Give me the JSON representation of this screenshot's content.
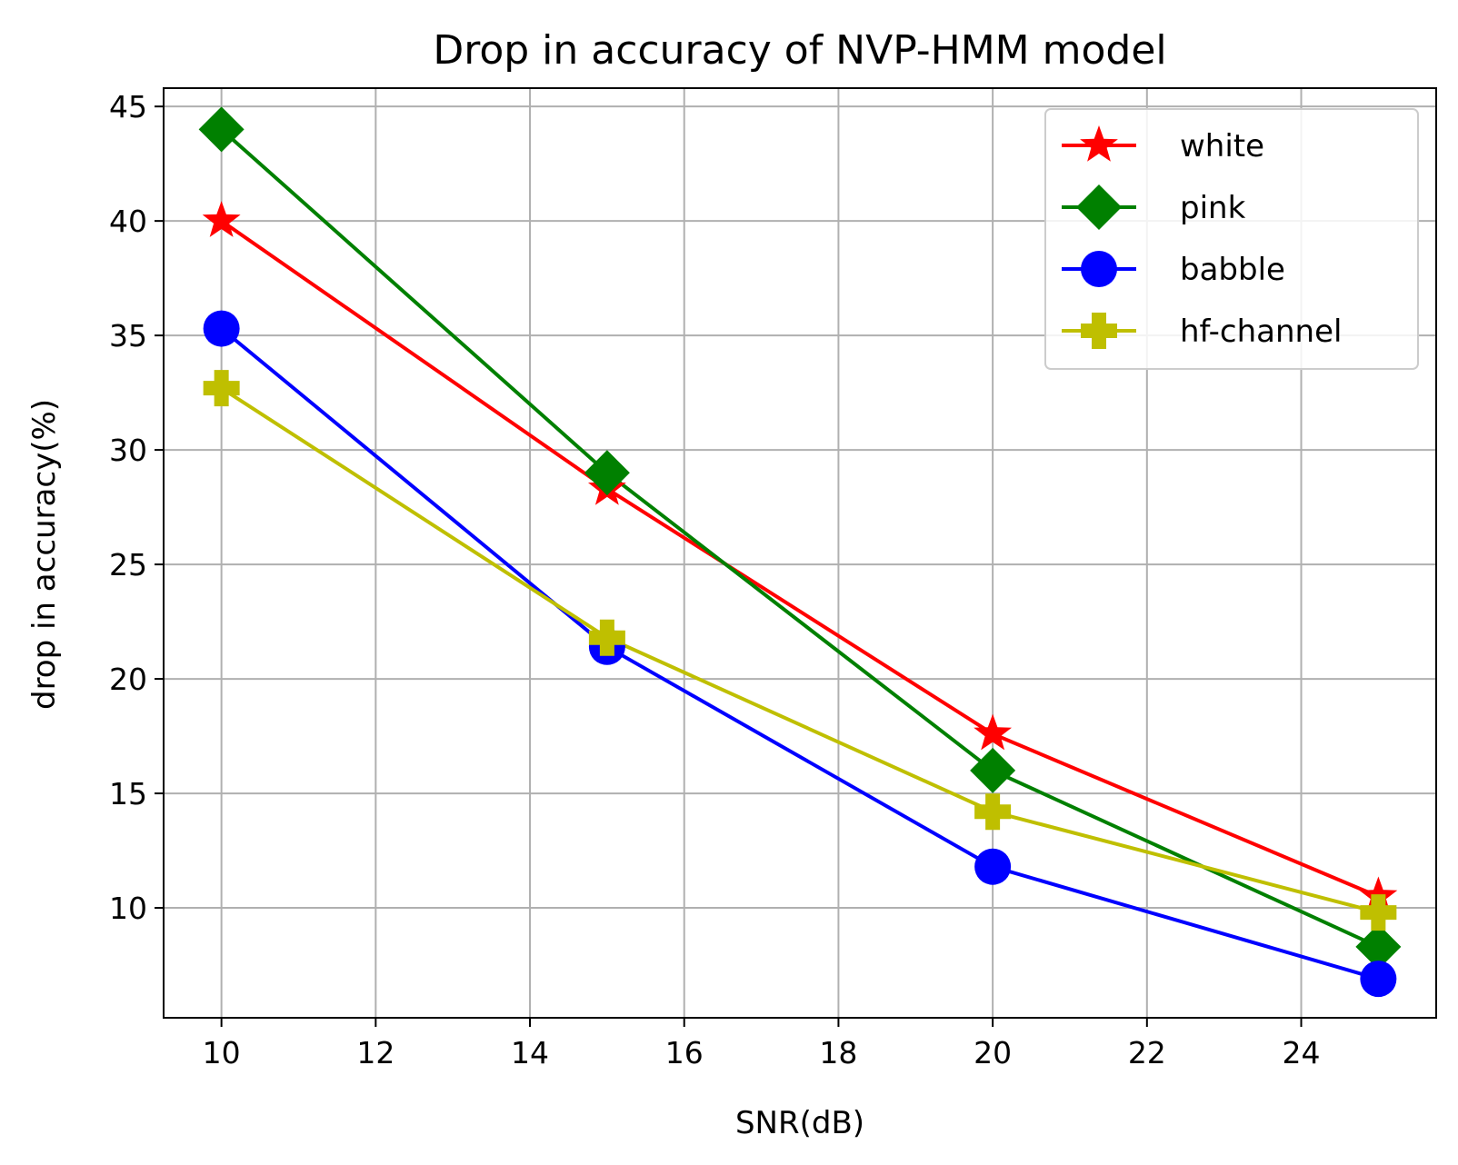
{
  "chart_data": {
    "type": "line",
    "title": "Drop in accuracy of NVP-HMM model",
    "xlabel": "SNR(dB)",
    "ylabel": "drop in accuracy(%)",
    "xlim": [
      9.25,
      25.75
    ],
    "ylim": [
      5.2,
      45.8
    ],
    "xticks": [
      10,
      12,
      14,
      16,
      18,
      20,
      22,
      24
    ],
    "yticks": [
      10,
      15,
      20,
      25,
      30,
      35,
      40,
      45
    ],
    "xtick_labels": [
      "10",
      "12",
      "14",
      "16",
      "18",
      "20",
      "22",
      "24"
    ],
    "ytick_labels": [
      "10",
      "15",
      "20",
      "25",
      "30",
      "35",
      "40",
      "45"
    ],
    "grid": true,
    "legend_position": "upper right",
    "x": [
      10,
      15,
      20,
      25
    ],
    "series": [
      {
        "name": "white",
        "values": [
          40.0,
          28.3,
          17.6,
          10.5
        ],
        "color": "#ff0000",
        "marker": "star"
      },
      {
        "name": "pink",
        "values": [
          44.0,
          29.0,
          16.0,
          8.3
        ],
        "color": "#008000",
        "marker": "diamond"
      },
      {
        "name": "babble",
        "values": [
          35.3,
          21.4,
          11.8,
          6.9
        ],
        "color": "#0000ff",
        "marker": "circle"
      },
      {
        "name": "hf-channel",
        "values": [
          32.7,
          21.8,
          14.2,
          9.8
        ],
        "color": "#bfbf00",
        "marker": "plus"
      }
    ]
  }
}
